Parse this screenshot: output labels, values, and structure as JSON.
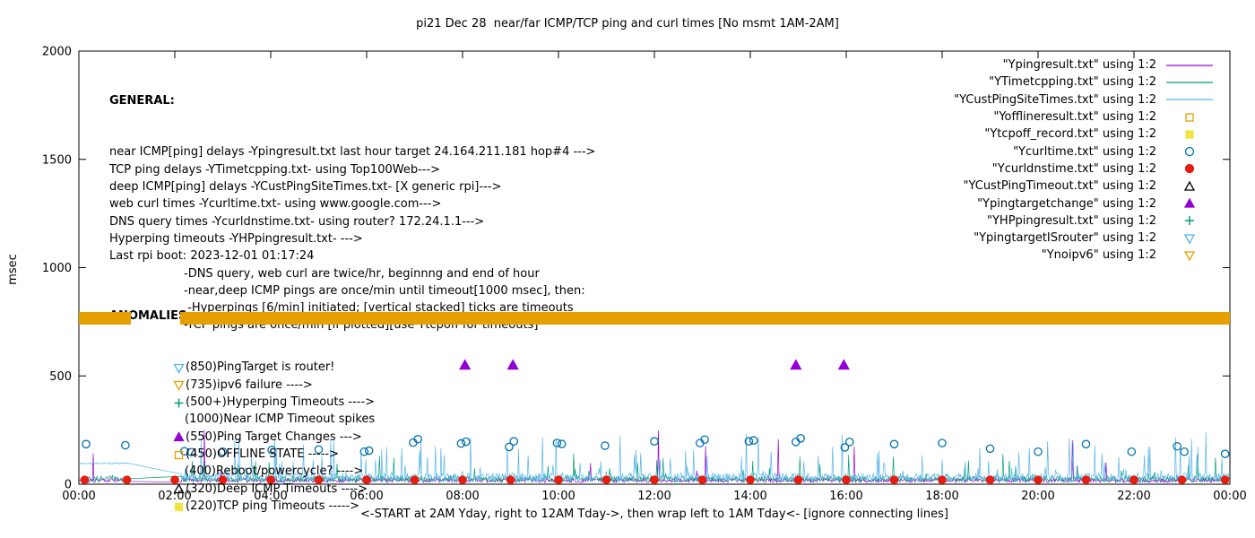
{
  "title": "pi21 Dec 28  near/far ICMP/TCP ping and curl times [No msmt 1AM-2AM]",
  "axes": {
    "ylabel": "msec",
    "xlabel": "<-START at 2AM Yday, right to 12AM Tday->, then wrap left to 1AM Tday<- [ignore connecting lines]"
  },
  "general": {
    "header": "GENERAL:",
    "lines": [
      {
        "text": "near ICMP[ping] delays -Ypingresult.txt last hour target 24.164.211.181 hop#4 --->",
        "indent": 0
      },
      {
        "text": "TCP ping delays -YTimetcpping.txt- using Top100Web--->",
        "indent": 0
      },
      {
        "text": "deep ICMP[ping] delays -YCustPingSiteTimes.txt- [X generic rpi]--->",
        "indent": 0
      },
      {
        "text": "web curl times -Ycurltime.txt- using www.google.com--->",
        "indent": 0
      },
      {
        "text": "DNS query times -Ycurldnstime.txt- using router? 172.24.1.1--->",
        "indent": 0
      },
      {
        "text": "Hyperping timeouts -YHPpingresult.txt- --->",
        "indent": 0
      },
      {
        "text": "Last rpi boot: 2023-12-01 01:17:24",
        "indent": 0
      },
      {
        "text": "-DNS query, web curl are twice/hr, beginnng and end of hour",
        "indent": 1
      },
      {
        "text": "-near,deep ICMP pings are once/min until timeout[1000 msec], then:",
        "indent": 1
      },
      {
        "text": " -Hyperpings [6/min] initiated; [vertical stacked] ticks are timeouts",
        "indent": 1
      },
      {
        "text": "-TCP pings are once/min [if plotted][use Ytcpoff for timeouts]",
        "indent": 1
      }
    ]
  },
  "anomalies": {
    "header": "ANOMALIES:",
    "items": [
      {
        "icon": "tri-down-open",
        "icon_color": "#56b4e9",
        "text": "(850)PingTarget is router!"
      },
      {
        "icon": "tri-down-open",
        "icon_color": "#e69f00",
        "text": "(735)ipv6 failure ---->",
        "note": "mostly hidden behind Ynoipv6 marker band"
      },
      {
        "icon": "plus",
        "icon_color": "#009e73",
        "text": "(500+)Hyperping Timeouts ---->"
      },
      {
        "icon": null,
        "text": "(1000)Near ICMP Timeout spikes"
      },
      {
        "icon": "tri-up-filled",
        "icon_color": "#9400d3",
        "text": "(550)Ping Target Changes --->"
      },
      {
        "icon": "square-open",
        "icon_color": "#e69f00",
        "text": "(450)OFFLINE STATE ----->"
      },
      {
        "icon": null,
        "text": "(400)Reboot/powercycle? ---->"
      },
      {
        "icon": "tri-up-open",
        "icon_color": "#000000",
        "text": "(320)Deep ICMP Timeouts ---->"
      },
      {
        "icon": "square-filled",
        "icon_color": "#f0e442",
        "text": "(220)TCP ping Timeouts ----->"
      }
    ]
  },
  "legend": {
    "position": "top-right-inside",
    "items": [
      {
        "label": "\"Ypingresult.txt\" using 1:2",
        "sample": "line",
        "color": "#9400d3"
      },
      {
        "label": "\"YTimetcpping.txt\" using 1:2",
        "sample": "line",
        "color": "#009e73"
      },
      {
        "label": "\"YCustPingSiteTimes.txt\" using 1:2",
        "sample": "line",
        "color": "#56b4e9"
      },
      {
        "label": "\"Yofflineresult.txt\" using 1:2",
        "sample": "square-open",
        "color": "#e69f00"
      },
      {
        "label": "\"Ytcpoff_record.txt\" using 1:2",
        "sample": "square-filled",
        "color": "#f0e442"
      },
      {
        "label": "\"Ycurltime.txt\" using 1:2",
        "sample": "circle-open",
        "color": "#0072b2"
      },
      {
        "label": "\"Ycurldnstime.txt\" using 1:2",
        "sample": "circle-filled",
        "color": "#e51e10"
      },
      {
        "label": "\"YCustPingTimeout.txt\" using 1:2",
        "sample": "tri-up-open",
        "color": "#000000"
      },
      {
        "label": "\"Ypingtargetchange\" using 1:2",
        "sample": "tri-up-filled",
        "color": "#9400d3"
      },
      {
        "label": "\"YHPpingresult.txt\" using 1:2",
        "sample": "plus",
        "color": "#009e73"
      },
      {
        "label": "\"YpingtargetISrouter\" using 1:2",
        "sample": "tri-down-open",
        "color": "#56b4e9"
      },
      {
        "label": "\"Ynoipv6\" using 1:2",
        "sample": "tri-down-open",
        "color": "#e69f00"
      }
    ]
  },
  "chart_data": {
    "type": "line",
    "title": "pi21 Dec 28  near/far ICMP/TCP ping and curl times [No msmt 1AM-2AM]",
    "xlabel": "<-START at 2AM Yday, right to 12AM Tday->, then wrap left to 1AM Tday<- [ignore connecting lines]",
    "ylabel": "msec",
    "xlim": [
      0,
      24
    ],
    "ylim": [
      0,
      2000
    ],
    "x_tick_values": [
      0,
      2,
      4,
      6,
      8,
      10,
      12,
      14,
      16,
      18,
      20,
      22,
      24
    ],
    "x_tick_labels": [
      "00:00",
      "02:00",
      "04:00",
      "06:00",
      "08:00",
      "10:00",
      "12:00",
      "14:00",
      "16:00",
      "18:00",
      "20:00",
      "22:00",
      "00:00"
    ],
    "y_tick_values": [
      0,
      500,
      1000,
      1500,
      2000
    ],
    "y_tick_labels": [
      "0",
      "500",
      "1000",
      "1500",
      "2000"
    ],
    "grid": false,
    "legend_position": "top-right",
    "no_measurement_gap_hours": [
      1.03,
      2.12
    ],
    "series": [
      {
        "name": "Ypingresult.txt",
        "type": "noise-line",
        "color": "#9400d3",
        "baseline": 8,
        "jitter": 20,
        "spike_prob": 0.012,
        "spike_max": 240,
        "seed": 101,
        "points_per_hour": 60,
        "gap": [
          1.03,
          2.12
        ],
        "note": "near ICMP ping delay, ~8-28 msec baseline with sparse spikes up to ~250 msec"
      },
      {
        "name": "YTimetcpping.txt",
        "type": "noise-line",
        "color": "#009e73",
        "baseline": 10,
        "jitter": 28,
        "spike_prob": 0.05,
        "spike_max": 110,
        "seed": 202,
        "points_per_hour": 60,
        "gap": [
          1.03,
          2.12
        ],
        "note": "TCP ping delay, ~10-40 msec baseline with spikes up to ~150 msec"
      },
      {
        "name": "YCustPingSiteTimes.txt",
        "type": "noise-line",
        "color": "#56b4e9",
        "baseline": 12,
        "jitter": 40,
        "spike_prob": 0.1,
        "spike_max": 190,
        "seed": 303,
        "points_per_hour": 60,
        "gap": [
          1.03,
          2.12
        ],
        "early": [
          1.03,
          92,
          8
        ],
        "note": "deep ICMP ping delay, ~12-55 msec baseline with frequent spikes to ~100-250 msec; flat ~95 msec during first hour, connecting line across the 1AM-2AM gap"
      },
      {
        "name": "Ycurltime.txt",
        "type": "points",
        "marker": "circle-open",
        "color": "#0072b2",
        "size": 4.6,
        "points": [
          [
            0.15,
            185
          ],
          [
            0.97,
            180
          ],
          [
            2.2,
            152
          ],
          [
            2.35,
            148
          ],
          [
            3.0,
            150
          ],
          [
            4.02,
            158
          ],
          [
            5.0,
            160
          ],
          [
            5.95,
            150
          ],
          [
            6.05,
            155
          ],
          [
            6.97,
            192
          ],
          [
            7.07,
            208
          ],
          [
            7.97,
            188
          ],
          [
            8.07,
            196
          ],
          [
            8.97,
            172
          ],
          [
            9.07,
            198
          ],
          [
            9.97,
            190
          ],
          [
            10.07,
            186
          ],
          [
            10.97,
            178
          ],
          [
            12.0,
            198
          ],
          [
            12.95,
            190
          ],
          [
            13.05,
            206
          ],
          [
            13.97,
            198
          ],
          [
            14.07,
            202
          ],
          [
            14.95,
            195
          ],
          [
            15.05,
            212
          ],
          [
            15.97,
            170
          ],
          [
            16.07,
            195
          ],
          [
            17.0,
            185
          ],
          [
            18.0,
            190
          ],
          [
            19.0,
            164
          ],
          [
            20.0,
            150
          ],
          [
            21.0,
            185
          ],
          [
            21.95,
            150
          ],
          [
            22.9,
            175
          ],
          [
            23.05,
            150
          ],
          [
            23.9,
            140
          ]
        ],
        "note": "web curl times, ~140-215 msec, about twice per hour"
      },
      {
        "name": "Ycurldnstime.txt",
        "type": "points",
        "marker": "circle-filled",
        "color": "#e51e10",
        "size": 4.6,
        "points": [
          [
            0.12,
            20
          ],
          [
            1,
            20
          ],
          [
            2,
            20
          ],
          [
            3,
            20
          ],
          [
            4,
            20
          ],
          [
            5,
            20
          ],
          [
            6,
            20
          ],
          [
            7,
            20
          ],
          [
            8,
            20
          ],
          [
            9,
            20
          ],
          [
            10,
            20
          ],
          [
            11,
            20
          ],
          [
            12,
            20
          ],
          [
            13,
            20
          ],
          [
            14,
            20
          ],
          [
            15,
            20
          ],
          [
            16,
            20
          ],
          [
            17,
            20
          ],
          [
            18,
            20
          ],
          [
            19,
            20
          ],
          [
            20,
            20
          ],
          [
            21,
            20
          ],
          [
            22,
            20
          ],
          [
            23,
            20
          ],
          [
            23.9,
            20
          ]
        ],
        "note": "DNS query times, ~20 msec every hour"
      },
      {
        "name": "YCustPingTimeout.txt",
        "type": "points",
        "marker": "tri-up-open",
        "color": "#000000",
        "size": 5,
        "points": [],
        "note": "no deep-ICMP-timeout markers visible this day"
      },
      {
        "name": "Ypingtargetchange",
        "type": "points",
        "marker": "tri-up-filled",
        "color": "#9400d3",
        "size": 5.5,
        "points": [
          [
            8.05,
            550
          ],
          [
            9.05,
            550
          ],
          [
            14.95,
            550
          ],
          [
            15.95,
            550
          ]
        ],
        "note": "ping target change events plotted at 550 msec"
      },
      {
        "name": "YHPpingresult.txt",
        "type": "points",
        "marker": "plus",
        "color": "#009e73",
        "size": 5,
        "points": [],
        "note": "no hyperping-timeout tick marks visible this day"
      },
      {
        "name": "Yofflineresult.txt",
        "type": "points",
        "marker": "square-open",
        "color": "#e69f00",
        "size": 5,
        "points": [],
        "note": "no offline-state markers visible this day"
      },
      {
        "name": "Ytcpoff_record.txt",
        "type": "points",
        "marker": "square-filled",
        "color": "#f0e442",
        "size": 5,
        "points": [],
        "note": "no TCP-ping-timeout markers visible this day"
      },
      {
        "name": "YpingtargetISrouter",
        "type": "points",
        "marker": "tri-down-open",
        "color": "#56b4e9",
        "size": 5,
        "points": [],
        "note": "no ping-target-is-router markers visible this day"
      },
      {
        "name": "Ynoipv6",
        "type": "band",
        "color": "#e69f00",
        "y": 766,
        "half_height": 29,
        "segments": [
          [
            0,
            1.08
          ],
          [
            2.12,
            24
          ]
        ],
        "note": "dense ipv6-failure markers forming a solid band at ~735-795 msec, absent during the 1AM-2AM no-measurement window"
      }
    ]
  }
}
